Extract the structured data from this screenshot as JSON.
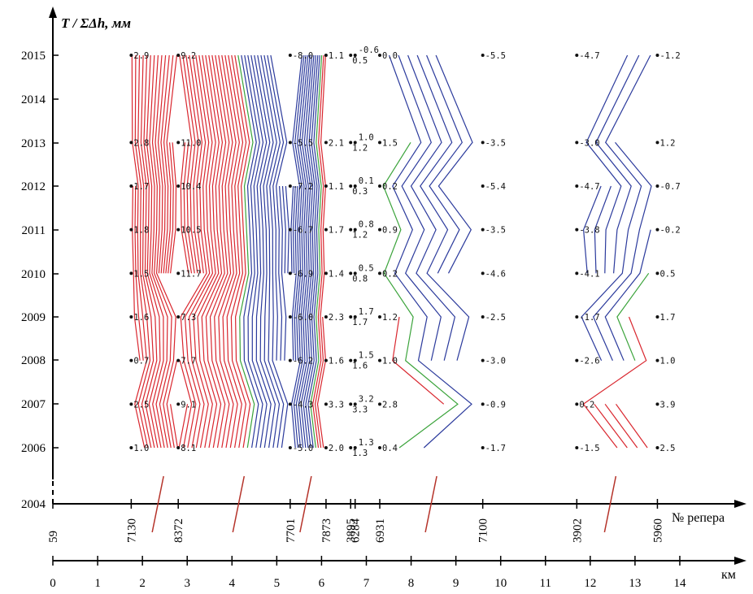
{
  "chart_data": {
    "type": "contour",
    "title": "T / ΣΔh, мм",
    "y_axis": {
      "ticks": [
        "2004",
        "2006",
        "2007",
        "2008",
        "2009",
        "2010",
        "2011",
        "2012",
        "2013",
        "2014",
        "2015"
      ],
      "broken_between": [
        "2004",
        "2006"
      ]
    },
    "x_axis_reper": {
      "label": "№ репера",
      "benchmarks": [
        "59",
        "7130",
        "8372",
        "7701",
        "7873",
        "3895",
        "6284",
        "6931",
        "7100",
        "3902",
        "5960"
      ]
    },
    "x_axis_km": {
      "label": "км",
      "ticks": [
        "0",
        "1",
        "2",
        "3",
        "4",
        "5",
        "6",
        "7",
        "8",
        "9",
        "10",
        "11",
        "12",
        "13",
        "14"
      ]
    },
    "years": [
      2006,
      2007,
      2008,
      2009,
      2010,
      2011,
      2012,
      2013,
      2015
    ],
    "columns": [
      {
        "reper": "7130",
        "km": 1.75,
        "values": [
          "1.0",
          "2.5",
          "0.7",
          "1.6",
          "1.5",
          "1.8",
          "1.7",
          "2.8",
          "2.9"
        ]
      },
      {
        "reper": "8372",
        "km": 2.8,
        "values": [
          "8.1",
          "9.1",
          "7.7",
          "7.3",
          "11.7",
          "10.5",
          "10.4",
          "11.0",
          "9.2"
        ]
      },
      {
        "reper": "7701",
        "km": 5.3,
        "values": [
          "-5.0",
          "-4.3",
          "-6.2",
          "-6.0",
          "-6.9",
          "-6.7",
          "-7.2",
          "-5.5",
          "-8.0"
        ]
      },
      {
        "reper": "7873",
        "km": 6.1,
        "values": [
          "2.0",
          "3.3",
          "1.6",
          "2.3",
          "1.4",
          "1.7",
          "1.1",
          "2.1",
          "1.1"
        ]
      },
      {
        "reper": "3895",
        "km": 6.65,
        "values": [
          "1.3",
          "3.3",
          "1.6",
          "1.7",
          "0.8",
          "1.2",
          "0.3",
          "1.2",
          "0.5"
        ]
      },
      {
        "reper": "6284",
        "km": 6.75,
        "values": [
          "1.3",
          "3.2",
          "1.5",
          "1.7",
          "0.5",
          "0.8",
          "0.1",
          "1.0",
          "-0.6"
        ]
      },
      {
        "reper": "6931",
        "km": 7.3,
        "values": [
          "0.4",
          "2.8",
          "1.0",
          "1.2",
          "0.2",
          "0.9",
          "0.2",
          "1.5",
          "0.0"
        ]
      },
      {
        "reper": "7100",
        "km": 9.6,
        "values": [
          "-1.7",
          "-0.9",
          "-3.0",
          "-2.5",
          "-4.6",
          "-3.5",
          "-5.4",
          "-3.5",
          "-5.5"
        ]
      },
      {
        "reper": "3902",
        "km": 11.7,
        "values": [
          "-1.5",
          "0.2",
          "-2.6",
          "-1.7",
          "-4.1",
          "-3.8",
          "-4.7",
          "-3.0",
          "-4.7"
        ]
      },
      {
        "reper": "5960",
        "km": 13.5,
        "values": [
          "2.5",
          "3.9",
          "1.0",
          "1.7",
          "0.5",
          "-0.2",
          "-0.7",
          "1.2",
          "-1.2"
        ]
      }
    ],
    "colors": {
      "positive": "#d9262e",
      "negative": "#2b3a9c",
      "zero": "#3aa33a"
    }
  }
}
